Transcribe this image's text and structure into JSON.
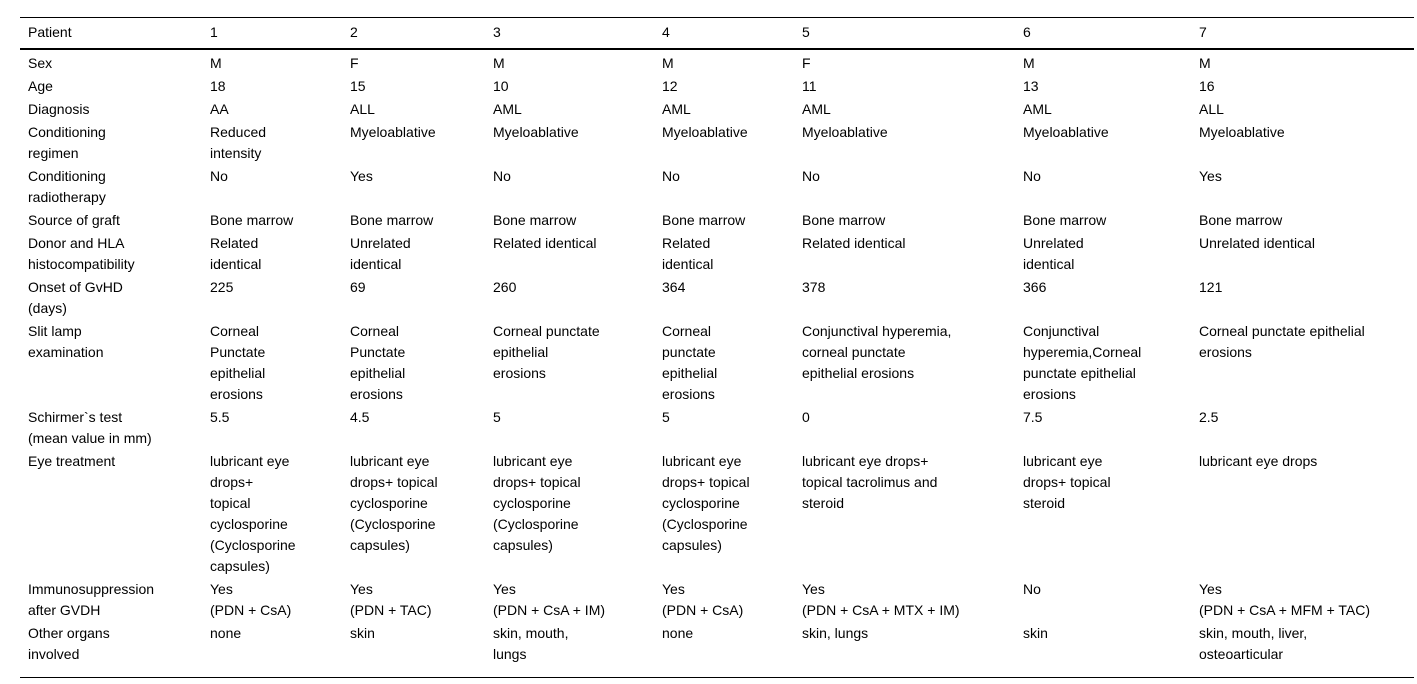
{
  "colors": {
    "background": "#ffffff",
    "text": "#000000",
    "rule": "#000000"
  },
  "table": {
    "header": {
      "label": "Patient",
      "columns": [
        "1",
        "2",
        "3",
        "4",
        "5",
        "6",
        "7"
      ]
    },
    "rows": [
      {
        "label": "Sex",
        "values": [
          "M",
          "F",
          "M",
          "M",
          "F",
          "M",
          "M"
        ]
      },
      {
        "label": "Age",
        "values": [
          "18",
          "15",
          "10",
          "12",
          "11",
          "13",
          "16"
        ]
      },
      {
        "label": "Diagnosis",
        "values": [
          "AA",
          "ALL",
          "AML",
          "AML",
          "AML",
          "AML",
          "ALL"
        ]
      },
      {
        "label": "Conditioning\nregimen",
        "values": [
          "Reduced\nintensity",
          "Myeloablative",
          "Myeloablative",
          "Myeloablative",
          "Myeloablative",
          "Myeloablative",
          "Myeloablative"
        ]
      },
      {
        "label": "Conditioning\nradiotherapy",
        "values": [
          "No",
          "Yes",
          "No",
          "No",
          "No",
          "No",
          "Yes"
        ]
      },
      {
        "label": "Source of graft",
        "values": [
          "Bone marrow",
          "Bone marrow",
          "Bone marrow",
          "Bone marrow",
          "Bone marrow",
          "Bone marrow",
          "Bone marrow"
        ]
      },
      {
        "label": "Donor and HLA\nhistocompatibility",
        "values": [
          "Related\nidentical",
          "Unrelated\nidentical",
          "Related identical",
          "Related\nidentical",
          "Related identical",
          "Unrelated\nidentical",
          "Unrelated identical"
        ]
      },
      {
        "label": "Onset of GvHD\n(days)",
        "values": [
          "225",
          "69",
          "260",
          "364",
          "378",
          "366",
          "121"
        ]
      },
      {
        "label": "Slit lamp\nexamination",
        "values": [
          "Corneal\nPunctate\nepithelial\nerosions",
          "Corneal\nPunctate\nepithelial\nerosions",
          "Corneal punctate\nepithelial\nerosions",
          "Corneal\npunctate\nepithelial\nerosions",
          "Conjunctival hyperemia,\ncorneal punctate\nepithelial erosions",
          "Conjunctival\nhyperemia,Corneal\npunctate epithelial\nerosions",
          "Corneal punctate epithelial\nerosions"
        ]
      },
      {
        "label": "Schirmer`s test\n(mean value in mm)",
        "values": [
          "5.5",
          "4.5",
          "5",
          "5",
          "0",
          "7.5",
          "2.5"
        ]
      },
      {
        "label": "Eye treatment",
        "values": [
          "lubricant eye\ndrops+\ntopical\ncyclosporine\n(Cyclosporine\ncapsules)",
          "lubricant eye\ndrops+ topical\ncyclosporine\n(Cyclosporine\ncapsules)",
          "lubricant eye\ndrops+ topical\ncyclosporine\n(Cyclosporine\ncapsules)",
          "lubricant eye\ndrops+ topical\ncyclosporine\n(Cyclosporine\ncapsules)",
          "lubricant eye drops+\ntopical tacrolimus and\nsteroid",
          "lubricant eye\ndrops+ topical\nsteroid",
          "lubricant eye drops"
        ]
      },
      {
        "label": "Immunosuppression\nafter GVDH",
        "values": [
          "Yes\n(PDN + CsA)",
          "Yes\n(PDN + TAC)",
          "Yes\n(PDN + CsA + IM)",
          "Yes\n(PDN + CsA)",
          "Yes\n(PDN + CsA + MTX + IM)",
          "No",
          "Yes\n(PDN + CsA + MFM + TAC)"
        ]
      },
      {
        "label": "Other organs\ninvolved",
        "values": [
          "none",
          "skin",
          "skin, mouth,\nlungs",
          "none",
          "skin, lungs",
          "skin",
          "skin, mouth, liver,\nosteoarticular"
        ]
      }
    ]
  }
}
